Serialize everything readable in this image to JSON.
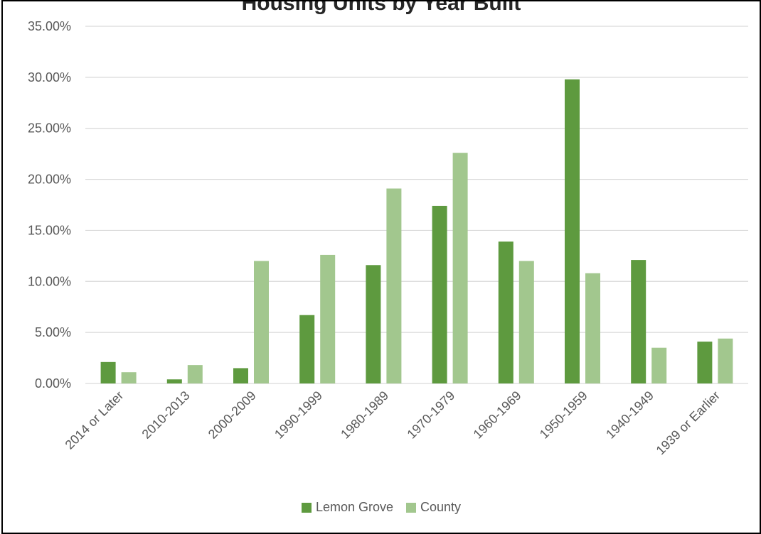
{
  "chart_data": {
    "type": "bar",
    "title": "Housing Units by Year Built",
    "categories": [
      "2014 or Later",
      "2010-2013",
      "2000-2009",
      "1990-1999",
      "1980-1989",
      "1970-1979",
      "1960-1969",
      "1950-1959",
      "1940-1949",
      "1939 or Earlier"
    ],
    "series": [
      {
        "name": "Lemon Grove",
        "color": "#5E9A3F",
        "values": [
          2.1,
          0.4,
          1.5,
          6.7,
          11.6,
          17.4,
          13.9,
          29.8,
          12.1,
          4.1
        ]
      },
      {
        "name": "County",
        "color": "#A2C78E",
        "values": [
          1.1,
          1.8,
          12.0,
          12.6,
          19.1,
          22.6,
          12.0,
          10.8,
          3.5,
          4.4
        ]
      }
    ],
    "ylim": [
      0,
      35
    ],
    "yticks": [
      "0.00%",
      "5.00%",
      "10.00%",
      "15.00%",
      "20.00%",
      "25.00%",
      "30.00%",
      "35.00%"
    ],
    "ytick_values": [
      0,
      5,
      10,
      15,
      20,
      25,
      30,
      35
    ],
    "grid": true,
    "legend_position": "bottom"
  }
}
